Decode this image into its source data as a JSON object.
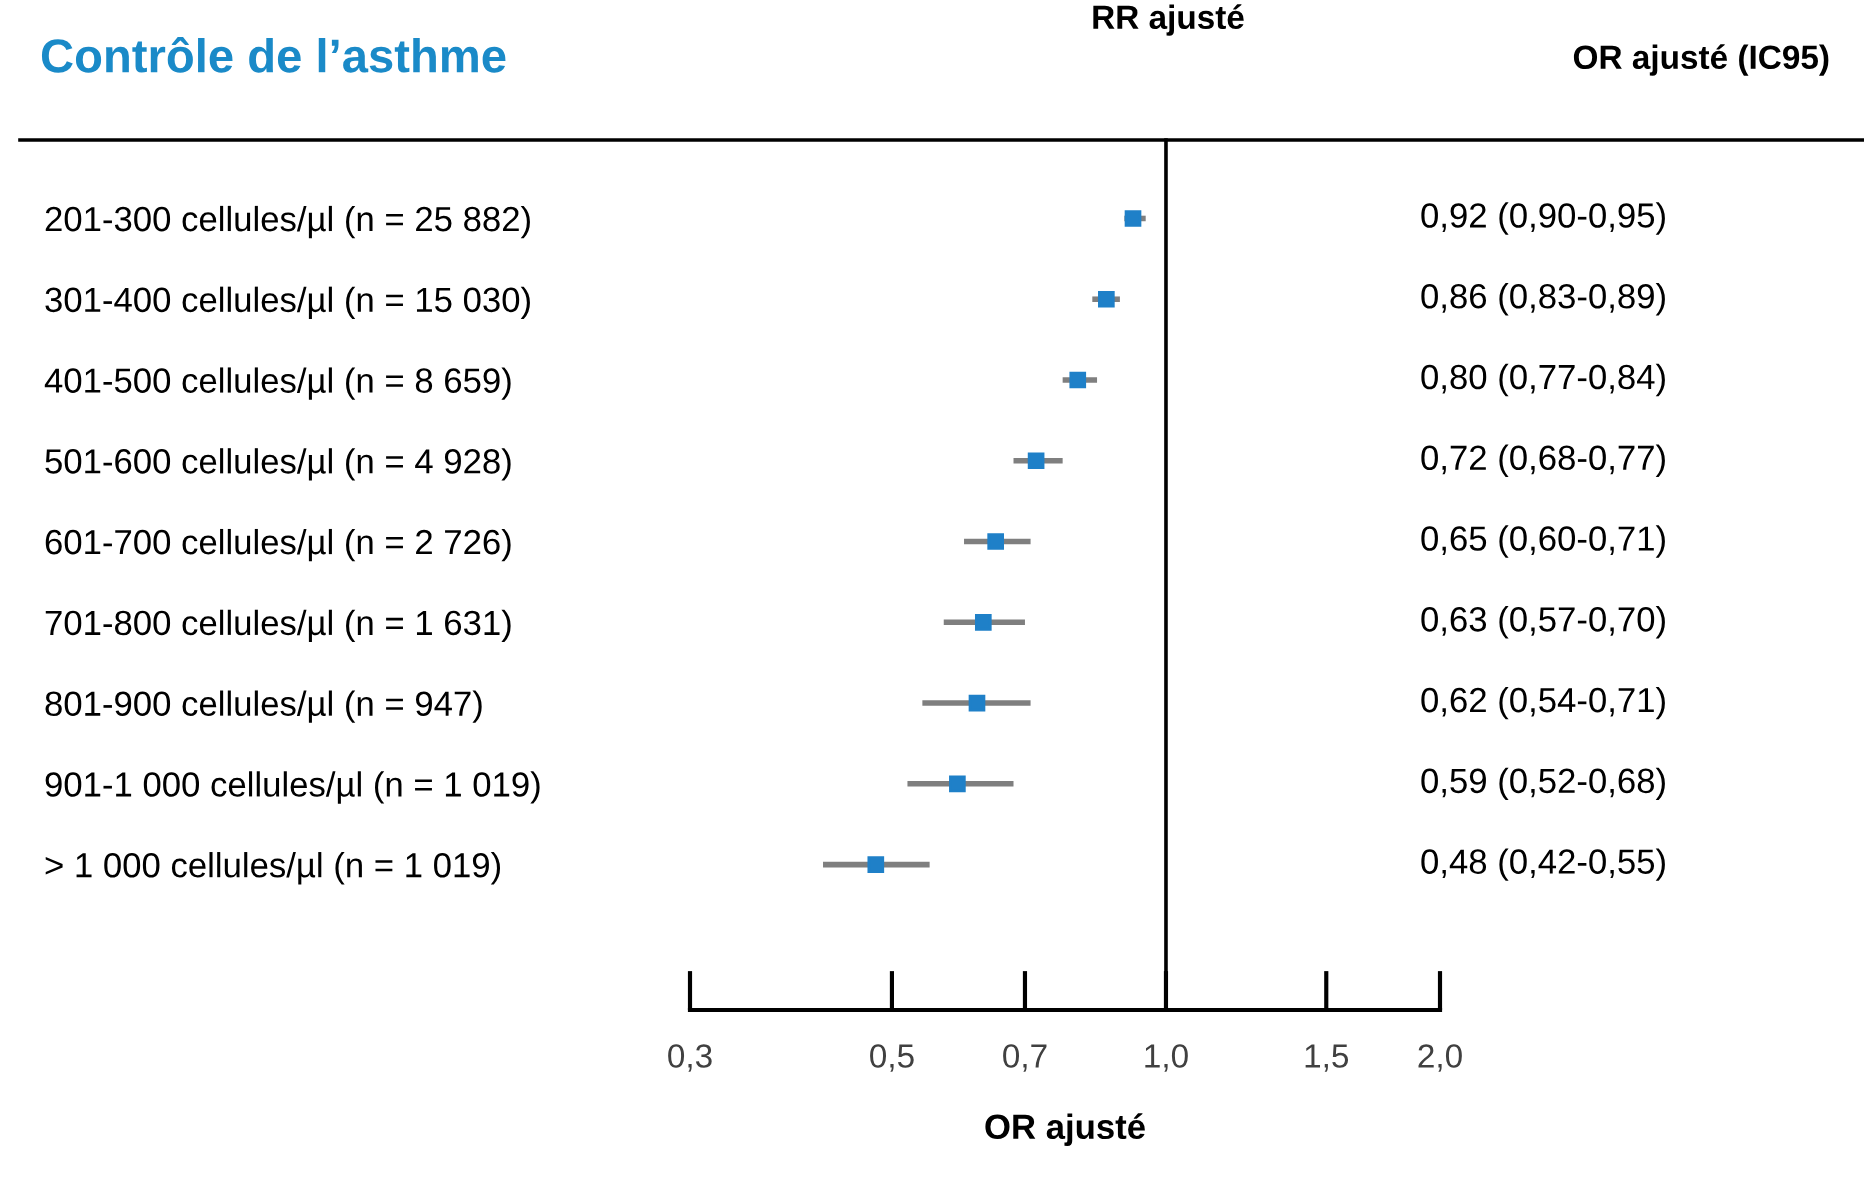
{
  "chart_data": {
    "type": "scatter",
    "title": "Contrôle de l’asthme",
    "xlabel": "OR ajusté",
    "annotations": [
      "RR ajusté",
      "OR ajusté (IC95)"
    ],
    "categories": [
      "201-300 cellules/µl (n = 25 882)",
      "301-400 cellules/µl (n = 15 030)",
      "401-500 cellules/µl (n = 8 659)",
      "501-600 cellules/µl (n = 4 928)",
      "601-700 cellules/µl (n = 2 726)",
      "701-800 cellules/µl (n = 1 631)",
      "801-900 cellules/µl (n = 947)",
      "901-1 000 cellules/µl (n = 1 019)",
      "> 1 000 cellules/µl (n = 1 019)"
    ],
    "values": [
      0.92,
      0.86,
      0.8,
      0.72,
      0.65,
      0.63,
      0.62,
      0.59,
      0.48
    ],
    "errors": [
      [
        0.9,
        0.95
      ],
      [
        0.83,
        0.89
      ],
      [
        0.77,
        0.84
      ],
      [
        0.68,
        0.77
      ],
      [
        0.6,
        0.71
      ],
      [
        0.57,
        0.7
      ],
      [
        0.54,
        0.71
      ],
      [
        0.52,
        0.68
      ],
      [
        0.42,
        0.55
      ]
    ],
    "value_labels": [
      "0,92 (0,90-0,95)",
      "0,86 (0,83-0,89)",
      "0,80 (0,77-0,84)",
      "0,72 (0,68-0,77)",
      "0,65 (0,60-0,71)",
      "0,63 (0,57-0,70)",
      "0,62 (0,54-0,71)",
      "0,59 (0,52-0,68)",
      "0,48 (0,42-0,55)"
    ],
    "color": "#1f80c8",
    "orientation": "horizontal",
    "marker": "square",
    "log": "x",
    "xlim": [
      0.3,
      2.0
    ],
    "xticks": [
      {
        "value": 0.3,
        "label": "0,3"
      },
      {
        "value": 0.5,
        "label": "0,5"
      },
      {
        "value": 0.7,
        "label": "0,7"
      },
      {
        "value": 1.0,
        "label": "1,0"
      },
      {
        "value": 1.5,
        "label": "1,5"
      },
      {
        "value": 2.0,
        "label": "2,0"
      }
    ],
    "ref_lines": [
      {
        "axis": "x",
        "value": 1.0,
        "color": "#000000"
      }
    ],
    "grid": false
  }
}
